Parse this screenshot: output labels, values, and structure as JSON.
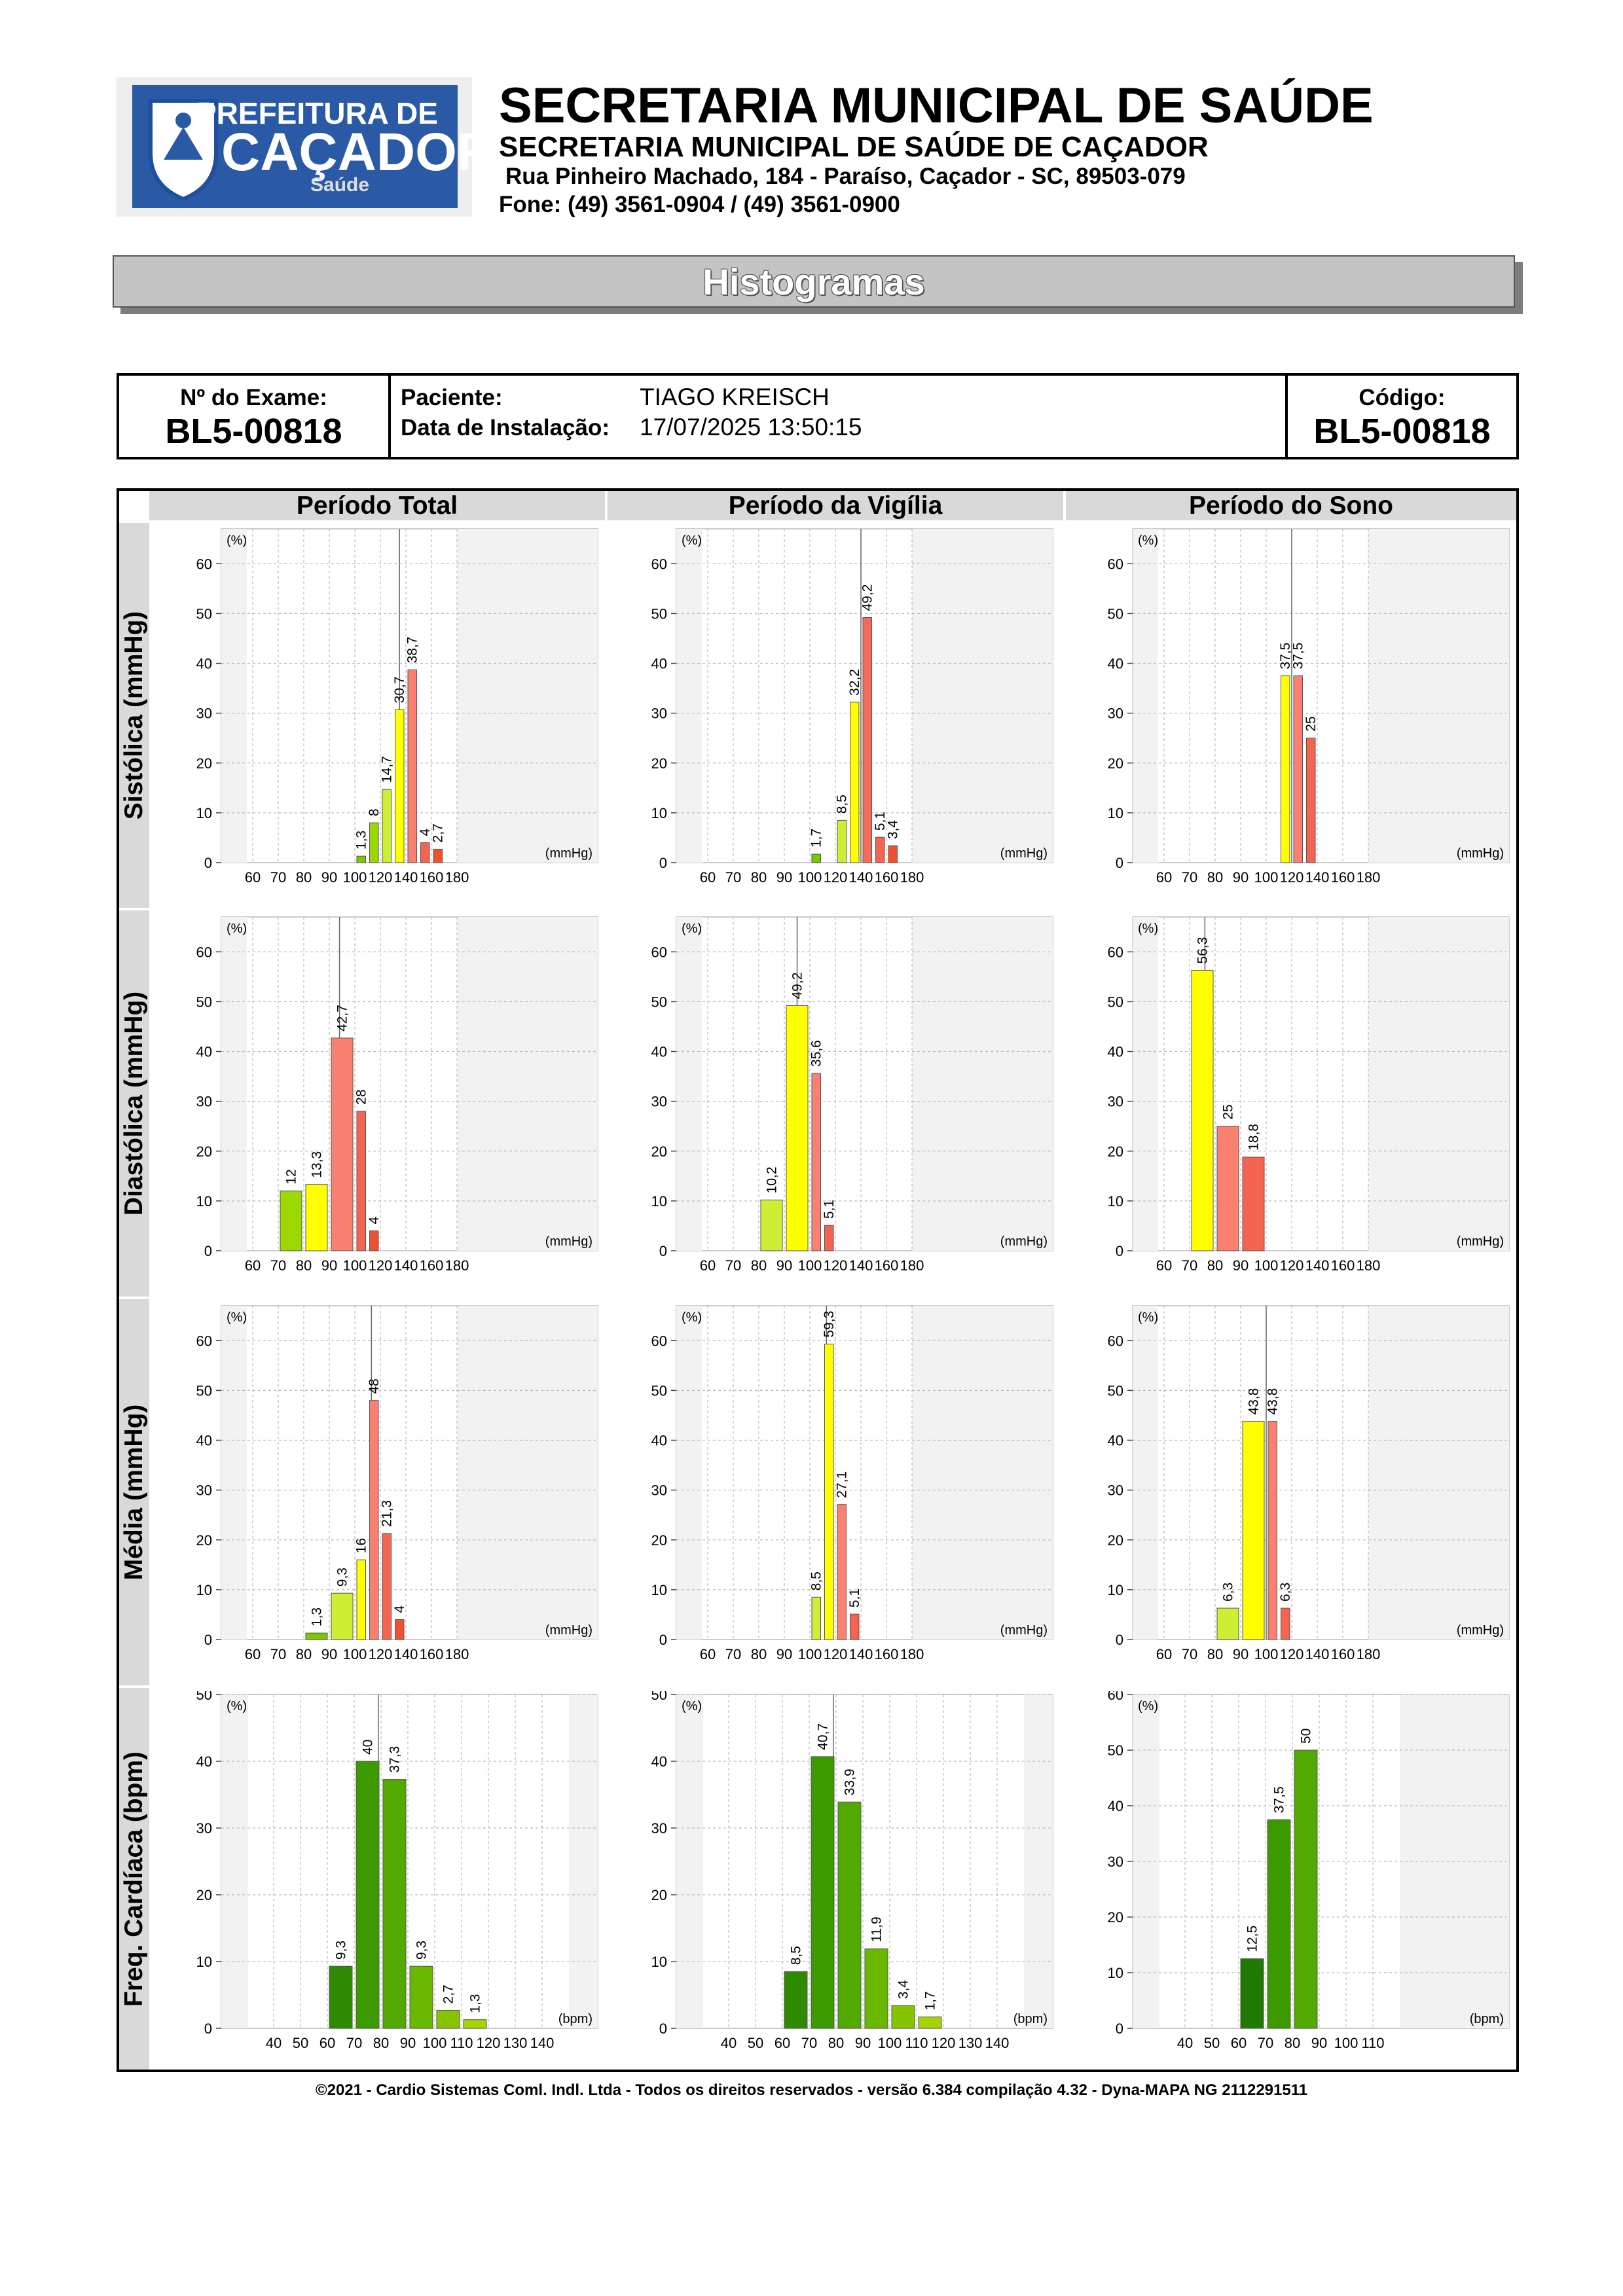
{
  "header": {
    "logo_line1": "PREFEITURA DE",
    "logo_line2": "CAÇADOR",
    "logo_line3": "Saúde",
    "title": "SECRETARIA MUNICIPAL DE SAÚDE",
    "subtitle": "SECRETARIA MUNICIPAL DE SAÚDE DE CAÇADOR",
    "address": "Rua Pinheiro Machado, 184 - Paraíso, Caçador - SC, 89503-079",
    "phone": "Fone: (49) 3561-0904  / (49) 3561-0900"
  },
  "banner": "Histogramas",
  "exam": {
    "exam_label": "Nº do Exame:",
    "exam_value": "BL5-00818",
    "patient_label": "Paciente:",
    "patient_value": "TIAGO KREISCH",
    "install_label": "Data de Instalação:",
    "install_value": "17/07/2025 13:50:15",
    "code_label": "Código:",
    "code_value": "BL5-00818"
  },
  "columns": [
    "Período Total",
    "Período da Vigília",
    "Período do Sono"
  ],
  "rows": [
    "Sistólica (mmHg)",
    "Diastólica (mmHg)",
    "Média (mmHg)",
    "Freq. Cardíaca (bpm)"
  ],
  "chart_data": [
    {
      "type": "bar",
      "ylabel": "(%)",
      "xlabel": "(mmHg)",
      "ylim": [
        0,
        67
      ],
      "yticks": [
        0,
        10,
        20,
        30,
        40,
        50,
        60
      ],
      "xticks": [
        "60",
        "70",
        "80",
        "90",
        "100",
        "120",
        "140",
        "160",
        "180"
      ],
      "bins": [
        [
          100,
          110
        ],
        [
          110,
          120
        ],
        [
          120,
          130
        ],
        [
          130,
          140
        ],
        [
          140,
          150
        ],
        [
          150,
          160
        ],
        [
          160,
          170
        ]
      ],
      "values": [
        1.3,
        8,
        14.7,
        30.7,
        38.7,
        4,
        2.7
      ],
      "labels": [
        "1,3",
        "8",
        "14,7",
        "30,7",
        "38,7",
        "4",
        "2,7"
      ],
      "colors": [
        "#7bc800",
        "#9bd800",
        "#ccee33",
        "#ffff00",
        "#fa8072",
        "#f46450",
        "#f05030"
      ],
      "shade": 180,
      "vline": 135
    },
    {
      "type": "bar",
      "ylabel": "(%)",
      "xlabel": "(mmHg)",
      "ylim": [
        0,
        67
      ],
      "yticks": [
        0,
        10,
        20,
        30,
        40,
        50,
        60
      ],
      "xticks": [
        "60",
        "70",
        "80",
        "90",
        "100",
        "120",
        "140",
        "160",
        "180"
      ],
      "bins": [
        [
          100,
          110
        ],
        [
          120,
          130
        ],
        [
          130,
          140
        ],
        [
          140,
          150
        ],
        [
          150,
          160
        ],
        [
          160,
          170
        ]
      ],
      "values": [
        1.7,
        8.5,
        32.2,
        49.2,
        5.1,
        3.4
      ],
      "labels": [
        "1,7",
        "8,5",
        "32,2",
        "49,2",
        "5,1",
        "3,4"
      ],
      "colors": [
        "#7bc800",
        "#ccee33",
        "#ffff00",
        "#fa6a5a",
        "#f46450",
        "#f05030"
      ],
      "shade": 180,
      "vline": 140
    },
    {
      "type": "bar",
      "ylabel": "(%)",
      "xlabel": "(mmHg)",
      "ylim": [
        0,
        67
      ],
      "yticks": [
        0,
        10,
        20,
        30,
        40,
        50,
        60
      ],
      "xticks": [
        "60",
        "70",
        "80",
        "90",
        "100",
        "120",
        "140",
        "160",
        "180"
      ],
      "bins": [
        [
          110,
          120
        ],
        [
          120,
          130
        ],
        [
          130,
          140
        ]
      ],
      "values": [
        37.5,
        37.5,
        25
      ],
      "labels": [
        "37,5",
        "37,5",
        "25"
      ],
      "colors": [
        "#ffff00",
        "#fa8072",
        "#f46450"
      ],
      "shade": 180,
      "vline": 120
    },
    {
      "type": "bar",
      "ylabel": "(%)",
      "xlabel": "(mmHg)",
      "ylim": [
        0,
        67
      ],
      "yticks": [
        0,
        10,
        20,
        30,
        40,
        50,
        60
      ],
      "xticks": [
        "60",
        "70",
        "80",
        "90",
        "100",
        "120",
        "140",
        "160",
        "180"
      ],
      "bins": [
        [
          70,
          80
        ],
        [
          80,
          90
        ],
        [
          90,
          100
        ],
        [
          100,
          110
        ],
        [
          110,
          120
        ]
      ],
      "values": [
        12,
        13.3,
        42.7,
        28,
        4
      ],
      "labels": [
        "12",
        "13,3",
        "42,7",
        "28",
        "4"
      ],
      "colors": [
        "#9bd800",
        "#ffff00",
        "#fa8072",
        "#f46450",
        "#f05030"
      ],
      "shade": 180,
      "vline": 94
    },
    {
      "type": "bar",
      "ylabel": "(%)",
      "xlabel": "(mmHg)",
      "ylim": [
        0,
        67
      ],
      "yticks": [
        0,
        10,
        20,
        30,
        40,
        50,
        60
      ],
      "xticks": [
        "60",
        "70",
        "80",
        "90",
        "100",
        "120",
        "140",
        "160",
        "180"
      ],
      "bins": [
        [
          80,
          90
        ],
        [
          90,
          100
        ],
        [
          100,
          110
        ],
        [
          110,
          120
        ]
      ],
      "values": [
        10.2,
        49.2,
        35.6,
        5.1
      ],
      "labels": [
        "10,2",
        "49,2",
        "35,6",
        "5,1"
      ],
      "colors": [
        "#ccee33",
        "#ffff00",
        "#fa8072",
        "#f46450"
      ],
      "shade": 180,
      "vline": 95
    },
    {
      "type": "bar",
      "ylabel": "(%)",
      "xlabel": "(mmHg)",
      "ylim": [
        0,
        67
      ],
      "yticks": [
        0,
        10,
        20,
        30,
        40,
        50,
        60
      ],
      "xticks": [
        "60",
        "70",
        "80",
        "90",
        "100",
        "120",
        "140",
        "160",
        "180"
      ],
      "bins": [
        [
          70,
          80
        ],
        [
          80,
          90
        ],
        [
          90,
          100
        ]
      ],
      "values": [
        56.3,
        25,
        18.8
      ],
      "labels": [
        "56,3",
        "25",
        "18,8"
      ],
      "colors": [
        "#ffff00",
        "#fa8072",
        "#f46450"
      ],
      "shade": 180,
      "vline": 76
    },
    {
      "type": "bar",
      "ylabel": "(%)",
      "xlabel": "(mmHg)",
      "ylim": [
        0,
        67
      ],
      "yticks": [
        0,
        10,
        20,
        30,
        40,
        50,
        60
      ],
      "xticks": [
        "60",
        "70",
        "80",
        "90",
        "100",
        "120",
        "140",
        "160",
        "180"
      ],
      "bins": [
        [
          80,
          90
        ],
        [
          90,
          100
        ],
        [
          100,
          110
        ],
        [
          110,
          120
        ],
        [
          120,
          130
        ],
        [
          130,
          140
        ]
      ],
      "values": [
        1.3,
        9.3,
        16,
        48,
        21.3,
        4
      ],
      "labels": [
        "1,3",
        "9,3",
        "16",
        "48",
        "21,3",
        "4"
      ],
      "colors": [
        "#7bc800",
        "#ccee33",
        "#ffff00",
        "#fa8072",
        "#f46450",
        "#f05030"
      ],
      "shade": 180,
      "vline": 113
    },
    {
      "type": "bar",
      "ylabel": "(%)",
      "xlabel": "(mmHg)",
      "ylim": [
        0,
        67
      ],
      "yticks": [
        0,
        10,
        20,
        30,
        40,
        50,
        60
      ],
      "xticks": [
        "60",
        "70",
        "80",
        "90",
        "100",
        "120",
        "140",
        "160",
        "180"
      ],
      "bins": [
        [
          100,
          110
        ],
        [
          110,
          120
        ],
        [
          120,
          130
        ],
        [
          130,
          140
        ]
      ],
      "values": [
        8.5,
        59.3,
        27.1,
        5.1
      ],
      "labels": [
        "8,5",
        "59,3",
        "27,1",
        "5,1"
      ],
      "colors": [
        "#ccee33",
        "#ffff00",
        "#fa8072",
        "#f46450"
      ],
      "shade": 180,
      "vline": 113
    },
    {
      "type": "bar",
      "ylabel": "(%)",
      "xlabel": "(mmHg)",
      "ylim": [
        0,
        67
      ],
      "yticks": [
        0,
        10,
        20,
        30,
        40,
        50,
        60
      ],
      "xticks": [
        "60",
        "70",
        "80",
        "90",
        "100",
        "120",
        "140",
        "160",
        "180"
      ],
      "bins": [
        [
          80,
          90
        ],
        [
          90,
          100
        ],
        [
          100,
          110
        ],
        [
          110,
          120
        ]
      ],
      "values": [
        6.3,
        43.8,
        43.8,
        6.3
      ],
      "labels": [
        "6,3",
        "43,8",
        "43,8",
        "6,3"
      ],
      "colors": [
        "#ccee33",
        "#ffff00",
        "#fa8072",
        "#f46450"
      ],
      "shade": 180,
      "vline": 100
    },
    {
      "type": "bar",
      "ylabel": "(%)",
      "xlabel": "(bpm)",
      "ylim": [
        0,
        50
      ],
      "yticks": [
        0,
        10,
        20,
        30,
        40,
        50
      ],
      "xticks": [
        "40",
        "50",
        "60",
        "70",
        "80",
        "90",
        "100",
        "110",
        "120",
        "130",
        "140"
      ],
      "bins": [
        [
          60,
          70
        ],
        [
          70,
          80
        ],
        [
          80,
          90
        ],
        [
          90,
          100
        ],
        [
          100,
          110
        ],
        [
          110,
          120
        ]
      ],
      "values": [
        9.3,
        40,
        37.3,
        9.3,
        2.7,
        1.3
      ],
      "labels": [
        "9,3",
        "40",
        "37,3",
        "9,3",
        "2,7",
        "1,3"
      ],
      "colors": [
        "#2e8b00",
        "#3c9a00",
        "#52aa00",
        "#6ab800",
        "#86c400",
        "#a5d400"
      ],
      "shade": 150,
      "vline": 79
    },
    {
      "type": "bar",
      "ylabel": "(%)",
      "xlabel": "(bpm)",
      "ylim": [
        0,
        50
      ],
      "yticks": [
        0,
        10,
        20,
        30,
        40,
        50
      ],
      "xticks": [
        "40",
        "50",
        "60",
        "70",
        "80",
        "90",
        "100",
        "110",
        "120",
        "130",
        "140"
      ],
      "bins": [
        [
          60,
          70
        ],
        [
          70,
          80
        ],
        [
          80,
          90
        ],
        [
          90,
          100
        ],
        [
          100,
          110
        ],
        [
          110,
          120
        ]
      ],
      "values": [
        8.5,
        40.7,
        33.9,
        11.9,
        3.4,
        1.7
      ],
      "labels": [
        "8,5",
        "40,7",
        "33,9",
        "11,9",
        "3,4",
        "1,7"
      ],
      "colors": [
        "#2e8b00",
        "#3c9a00",
        "#52aa00",
        "#6ab800",
        "#86c400",
        "#a5d400"
      ],
      "shade": 150,
      "vline": 79
    },
    {
      "type": "bar",
      "ylabel": "(%)",
      "xlabel": "(bpm)",
      "ylim": [
        0,
        60
      ],
      "yticks": [
        0,
        10,
        20,
        30,
        40,
        50,
        60
      ],
      "xticks": [
        "40",
        "50",
        "60",
        "70",
        "80",
        "90",
        "100",
        "110"
      ],
      "bins": [
        [
          60,
          70
        ],
        [
          70,
          80
        ],
        [
          80,
          90
        ]
      ],
      "values": [
        12.5,
        37.5,
        50
      ],
      "labels": [
        "12,5",
        "37,5",
        "50"
      ],
      "colors": [
        "#1e7a00",
        "#3c9a00",
        "#52aa00"
      ],
      "shade": 120,
      "vline": null
    }
  ],
  "footer": "©2021 - Cardio Sistemas Coml. Indl. Ltda - Todos os direitos reservados - versão 6.384 compilação 4.32 - Dyna-MAPA NG 2112291511"
}
